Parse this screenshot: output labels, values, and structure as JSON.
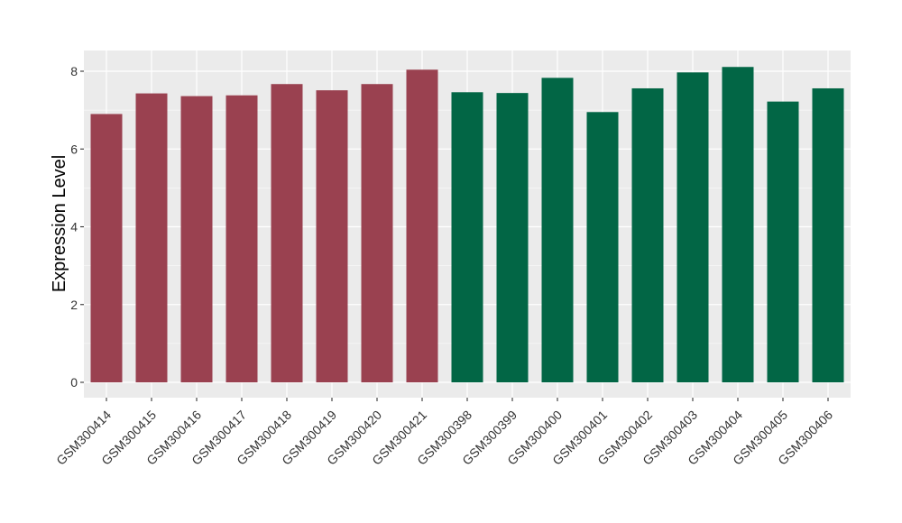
{
  "chart_data": {
    "type": "bar",
    "title": "",
    "xlabel": "",
    "ylabel": "Expression Level",
    "ylim": [
      0,
      8.6
    ],
    "yticks": [
      0,
      2,
      4,
      6,
      8
    ],
    "grid": true,
    "categories": [
      "GSM300414",
      "GSM300415",
      "GSM300416",
      "GSM300417",
      "GSM300418",
      "GSM300419",
      "GSM300420",
      "GSM300421",
      "GSM300398",
      "GSM300399",
      "GSM300400",
      "GSM300401",
      "GSM300402",
      "GSM300403",
      "GSM300404",
      "GSM300405",
      "GSM300406"
    ],
    "values": [
      6.9,
      7.43,
      7.36,
      7.38,
      7.67,
      7.51,
      7.67,
      8.04,
      7.46,
      7.44,
      7.83,
      6.95,
      7.56,
      7.97,
      8.11,
      7.22,
      7.56
    ],
    "groups": [
      0,
      0,
      0,
      0,
      0,
      0,
      0,
      0,
      1,
      1,
      1,
      1,
      1,
      1,
      1,
      1,
      1
    ],
    "colors": {
      "group0": "#9a4150",
      "group1": "#026645",
      "panel": "#ebebeb",
      "grid": "#ffffff"
    }
  }
}
